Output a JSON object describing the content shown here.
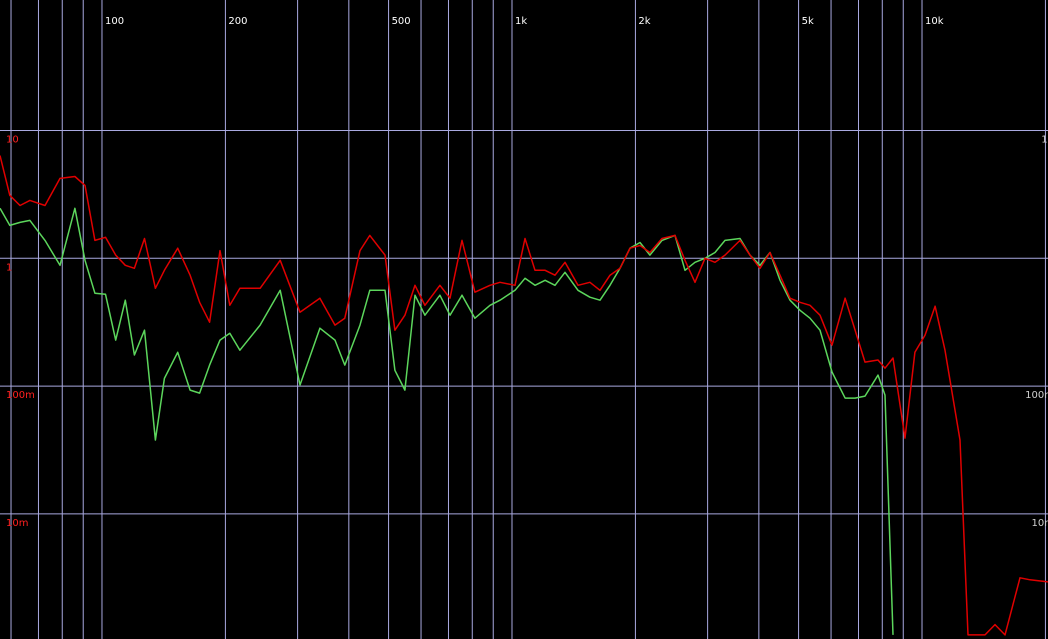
{
  "chart_data": {
    "type": "line",
    "log_x": true,
    "log_y": true,
    "grid": true,
    "xlim": [
      56.4,
      20290
    ],
    "ylim": [
      0.00105,
      105
    ],
    "xticks": [
      100,
      200,
      500,
      {
        "value": 1000,
        "label": "1k"
      },
      {
        "value": 2000,
        "label": "2k"
      },
      {
        "value": 5000,
        "label": "5k"
      },
      {
        "value": 10000,
        "label": "10k"
      }
    ],
    "minor_xgrid": [
      60,
      70,
      80,
      90,
      300,
      400,
      600,
      700,
      800,
      900,
      3000,
      4000,
      6000,
      7000,
      8000,
      9000,
      20000
    ],
    "yticks": [
      10,
      1,
      {
        "value": 0.1,
        "label": "100m"
      },
      {
        "value": 0.01,
        "label": "10m"
      }
    ],
    "x": [
      56.4,
      59.6,
      63.1,
      66.7,
      72.6,
      79.0,
      85.9,
      90.9,
      96.1,
      102,
      108,
      114,
      120,
      127,
      135,
      142,
      153,
      164,
      173,
      183,
      194,
      205,
      217,
      243,
      272,
      304,
      340,
      370,
      391,
      426,
      450,
      490,
      518,
      548,
      580,
      613,
      667,
      706,
      755,
      812,
      884,
      935,
      1017,
      1076,
      1138,
      1204,
      1273,
      1347,
      1449,
      1549,
      1639,
      1734,
      1834,
      1940,
      2052,
      2170,
      2322,
      2498,
      2642,
      2795,
      2956,
      3127,
      3307,
      3598,
      3806,
      4026,
      4258,
      4504,
      4764,
      5039,
      5330,
      5638,
      6032,
      6491,
      6866,
      7261,
      7810,
      8124,
      8497,
      9090,
      9610,
      10170,
      10760,
      11380,
      12380,
      12950,
      14240,
      15070,
      15940,
      17340,
      18340,
      20290
    ],
    "series": [
      {
        "color": "#e00000",
        "values": [
          6.38,
          3.11,
          2.59,
          2.84,
          2.59,
          4.22,
          4.37,
          3.72,
          1.38,
          1.46,
          1.06,
          0.882,
          0.835,
          1.43,
          0.583,
          0.806,
          1.2,
          0.737,
          0.453,
          0.316,
          1.15,
          0.429,
          0.583,
          0.583,
          0.965,
          0.379,
          0.487,
          0.3,
          0.34,
          1.15,
          1.51,
          1.06,
          0.274,
          0.359,
          0.615,
          0.429,
          0.615,
          0.487,
          1.38,
          0.543,
          0.615,
          0.649,
          0.615,
          1.43,
          0.806,
          0.806,
          0.737,
          0.931,
          0.615,
          0.649,
          0.562,
          0.737,
          0.835,
          1.2,
          1.26,
          1.11,
          1.43,
          1.51,
          0.965,
          0.649,
          1.0,
          0.931,
          1.06,
          1.38,
          1.06,
          0.835,
          1.11,
          0.737,
          0.487,
          0.453,
          0.429,
          0.359,
          0.209,
          0.487,
          0.274,
          0.154,
          0.16,
          0.138,
          0.166,
          0.0392,
          0.184,
          0.25,
          0.422,
          0.191,
          0.0379,
          0.00113,
          0.00113,
          0.00136,
          0.00113,
          0.00316,
          0.00305,
          0.00294
        ]
      },
      {
        "color": "#5cd65c",
        "values": [
          2.46,
          1.81,
          1.91,
          1.98,
          1.38,
          0.882,
          2.46,
          0.965,
          0.533,
          0.523,
          0.229,
          0.47,
          0.175,
          0.274,
          0.0379,
          0.115,
          0.184,
          0.0931,
          0.0882,
          0.146,
          0.229,
          0.259,
          0.191,
          0.3,
          0.562,
          0.102,
          0.284,
          0.229,
          0.146,
          0.3,
          0.562,
          0.562,
          0.133,
          0.0931,
          0.514,
          0.359,
          0.514,
          0.359,
          0.514,
          0.34,
          0.429,
          0.47,
          0.562,
          0.698,
          0.615,
          0.673,
          0.615,
          0.777,
          0.562,
          0.496,
          0.47,
          0.615,
          0.835,
          1.2,
          1.33,
          1.06,
          1.38,
          1.51,
          0.806,
          0.931,
          1.0,
          1.11,
          1.38,
          1.43,
          1.06,
          0.882,
          1.11,
          0.673,
          0.47,
          0.392,
          0.34,
          0.274,
          0.129,
          0.0806,
          0.0806,
          0.0835,
          0.122,
          0.0851,
          0.00113,
          null,
          null,
          null,
          null,
          null,
          null,
          null,
          null,
          null,
          null,
          null,
          null,
          null
        ]
      }
    ]
  }
}
